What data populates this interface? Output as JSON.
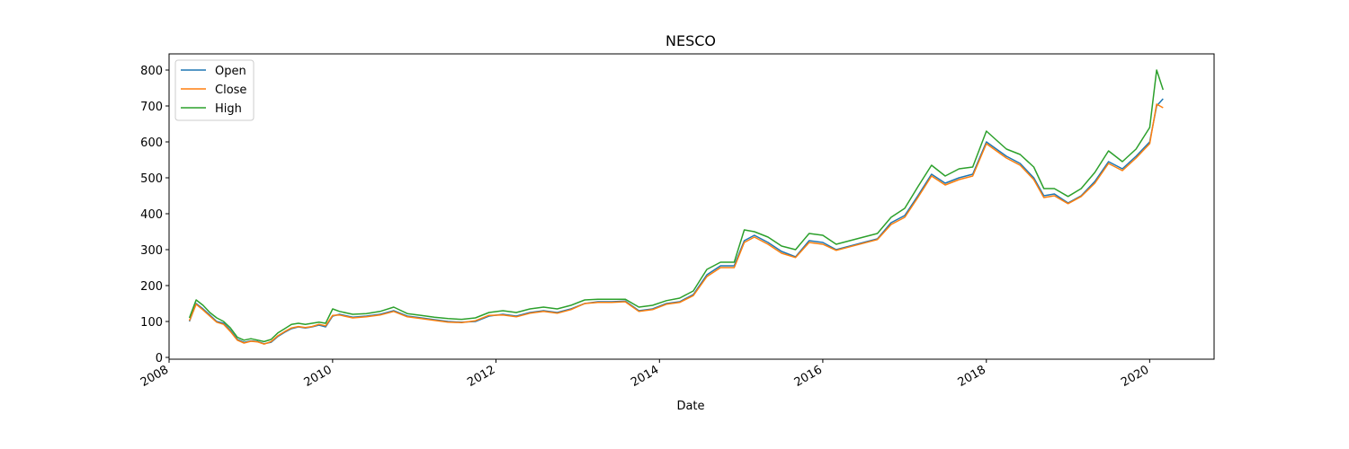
{
  "chart_data": {
    "type": "line",
    "title": "NESCO",
    "xlabel": "Date",
    "ylabel": "",
    "xlim": [
      "2008-01-01",
      "2020-10-15"
    ],
    "ylim": [
      -5,
      845
    ],
    "x_ticks": [
      "2008",
      "2010",
      "2012",
      "2014",
      "2016",
      "2018",
      "2020"
    ],
    "y_ticks": [
      0,
      100,
      200,
      300,
      400,
      500,
      600,
      700,
      800
    ],
    "legend": {
      "position": "top-left",
      "entries": [
        "Open",
        "Close",
        "High"
      ]
    },
    "grid": false,
    "x": [
      "2008-04-01",
      "2008-05-01",
      "2008-06-01",
      "2008-07-01",
      "2008-08-01",
      "2008-09-01",
      "2008-10-01",
      "2008-11-01",
      "2008-12-01",
      "2009-01-01",
      "2009-02-01",
      "2009-03-01",
      "2009-04-01",
      "2009-05-01",
      "2009-06-01",
      "2009-07-01",
      "2009-08-01",
      "2009-09-01",
      "2009-10-01",
      "2009-11-01",
      "2009-12-01",
      "2010-01-01",
      "2010-02-01",
      "2010-04-01",
      "2010-06-01",
      "2010-08-01",
      "2010-10-01",
      "2010-12-01",
      "2011-02-01",
      "2011-04-01",
      "2011-06-01",
      "2011-08-01",
      "2011-10-01",
      "2011-12-01",
      "2012-02-01",
      "2012-04-01",
      "2012-06-01",
      "2012-08-01",
      "2012-10-01",
      "2012-12-01",
      "2013-02-01",
      "2013-04-01",
      "2013-06-01",
      "2013-08-01",
      "2013-10-01",
      "2013-12-01",
      "2014-02-01",
      "2014-04-01",
      "2014-06-01",
      "2014-08-01",
      "2014-10-01",
      "2014-12-01",
      "2015-01-15",
      "2015-03-01",
      "2015-05-01",
      "2015-07-01",
      "2015-09-01",
      "2015-11-01",
      "2016-01-01",
      "2016-03-01",
      "2016-05-01",
      "2016-07-01",
      "2016-09-01",
      "2016-11-01",
      "2017-01-01",
      "2017-03-01",
      "2017-05-01",
      "2017-07-01",
      "2017-09-01",
      "2017-11-01",
      "2018-01-01",
      "2018-02-15",
      "2018-04-01",
      "2018-06-01",
      "2018-08-01",
      "2018-09-15",
      "2018-11-01",
      "2019-01-01",
      "2019-03-01",
      "2019-05-01",
      "2019-07-01",
      "2019-09-01",
      "2019-11-01",
      "2020-01-01",
      "2020-02-01",
      "2020-03-01"
    ],
    "series": [
      {
        "name": "Open",
        "color": "#1f77b4",
        "values": [
          100,
          150,
          135,
          118,
          100,
          95,
          75,
          50,
          42,
          46,
          44,
          38,
          42,
          58,
          70,
          80,
          85,
          82,
          85,
          90,
          85,
          115,
          120,
          112,
          115,
          120,
          130,
          115,
          110,
          105,
          100,
          98,
          100,
          115,
          120,
          115,
          125,
          130,
          125,
          135,
          150,
          155,
          155,
          157,
          130,
          135,
          150,
          155,
          175,
          230,
          255,
          255,
          325,
          340,
          320,
          295,
          280,
          325,
          320,
          300,
          310,
          320,
          330,
          375,
          395,
          450,
          510,
          485,
          500,
          510,
          600,
          580,
          560,
          540,
          500,
          450,
          455,
          430,
          450,
          490,
          545,
          525,
          560,
          600,
          700,
          720
        ]
      },
      {
        "name": "Close",
        "color": "#ff7f0e",
        "values": [
          102,
          148,
          132,
          115,
          98,
          92,
          72,
          48,
          40,
          45,
          43,
          37,
          44,
          60,
          72,
          82,
          86,
          83,
          86,
          92,
          88,
          117,
          118,
          110,
          113,
          118,
          128,
          113,
          108,
          103,
          98,
          97,
          102,
          117,
          118,
          113,
          123,
          128,
          123,
          133,
          150,
          153,
          153,
          155,
          128,
          133,
          148,
          153,
          172,
          225,
          250,
          250,
          320,
          335,
          315,
          290,
          278,
          320,
          315,
          298,
          308,
          318,
          328,
          370,
          390,
          445,
          505,
          480,
          495,
          505,
          595,
          575,
          555,
          535,
          495,
          445,
          450,
          428,
          448,
          485,
          540,
          520,
          555,
          595,
          705,
          695
        ]
      },
      {
        "name": "High",
        "color": "#2ca02c",
        "values": [
          110,
          160,
          145,
          125,
          110,
          100,
          82,
          56,
          48,
          52,
          48,
          44,
          50,
          68,
          80,
          92,
          95,
          92,
          95,
          98,
          95,
          135,
          128,
          120,
          122,
          128,
          140,
          122,
          117,
          112,
          108,
          106,
          110,
          125,
          130,
          125,
          135,
          140,
          135,
          145,
          160,
          162,
          162,
          162,
          140,
          145,
          158,
          165,
          185,
          245,
          265,
          265,
          355,
          350,
          335,
          310,
          300,
          345,
          340,
          315,
          325,
          335,
          345,
          390,
          415,
          475,
          535,
          505,
          525,
          530,
          630,
          605,
          580,
          565,
          530,
          470,
          470,
          448,
          470,
          515,
          575,
          545,
          580,
          640,
          800,
          745
        ]
      }
    ]
  }
}
